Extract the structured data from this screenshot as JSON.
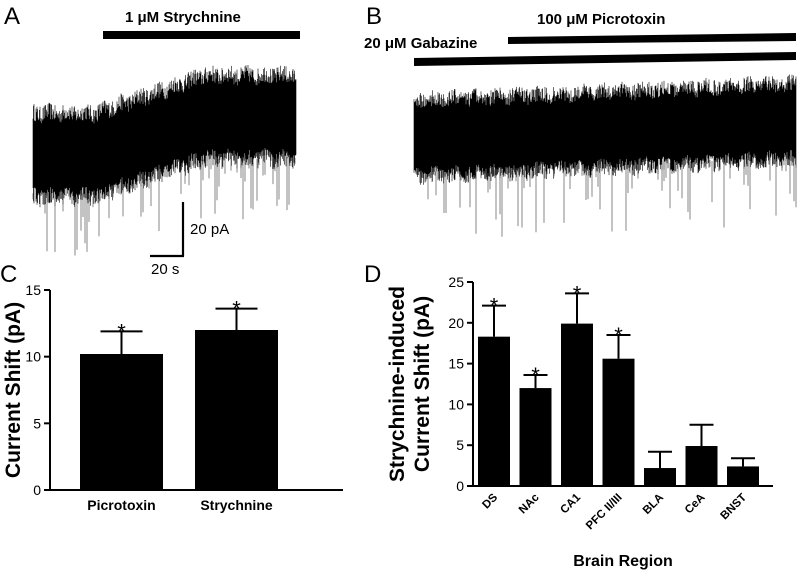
{
  "panels": {
    "A": {
      "letter": "A",
      "drug": "1 μM Strychnine"
    },
    "B": {
      "letter": "B",
      "drug_top": "100 μM Picrotoxin",
      "drug_bottom": "20 μM Gabazine"
    },
    "C": {
      "letter": "C"
    },
    "D": {
      "letter": "D"
    }
  },
  "scalebar": {
    "y_label": "20 pA",
    "x_label": "20 s"
  },
  "chart_data": [
    {
      "panel": "C",
      "type": "bar",
      "categories": [
        "Picrotoxin",
        "Strychnine"
      ],
      "values": [
        10.2,
        12.0
      ],
      "errors": [
        1.7,
        1.6
      ],
      "significant": [
        "*",
        "*"
      ],
      "ylabel": "Current Shift (pA)",
      "xlabel": "",
      "ylim": [
        0,
        15
      ],
      "yticks": [
        0,
        5,
        10,
        15
      ],
      "bar_color": "#000000"
    },
    {
      "panel": "D",
      "type": "bar",
      "categories": [
        "DS",
        "NAc",
        "CA1",
        "PFC II/III",
        "BLA",
        "CeA",
        "BNST"
      ],
      "values": [
        18.3,
        12.0,
        19.9,
        15.6,
        2.2,
        4.9,
        2.4
      ],
      "errors": [
        3.8,
        1.6,
        3.7,
        2.9,
        2.0,
        2.6,
        1.0
      ],
      "significant": [
        "*",
        "*",
        "*",
        "*",
        "",
        "",
        ""
      ],
      "ylabel": "Strychnine-induced\nCurrent Shift (pA)",
      "ylabel_lines": [
        "Strychnine-induced",
        "Current Shift (pA)"
      ],
      "xlabel": "Brain Region",
      "ylim": [
        0,
        25
      ],
      "yticks": [
        0,
        5,
        10,
        15,
        20,
        25
      ],
      "bar_color": "#000000"
    }
  ]
}
